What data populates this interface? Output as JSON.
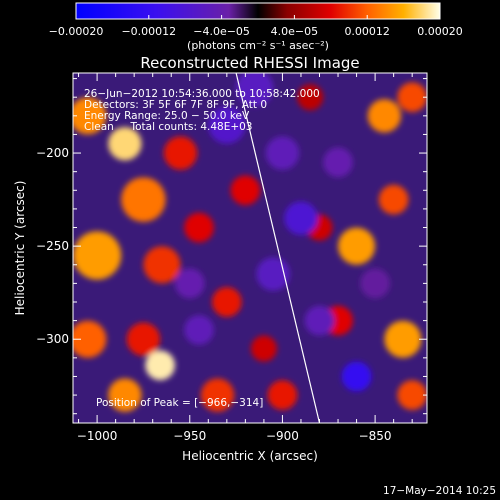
{
  "chart_data": {
    "type": "heatmap",
    "title": "Reconstructed RHESSI Image",
    "xlabel": "Heliocentric X (arcsec)",
    "ylabel": "Heliocentric Y (arcsec)",
    "xlim": [
      -1013,
      -822
    ],
    "ylim": [
      -345,
      -157
    ],
    "x_ticks": [
      {
        "v": -1000,
        "label": "−1000"
      },
      {
        "v": -950,
        "label": "−950"
      },
      {
        "v": -900,
        "label": "−900"
      },
      {
        "v": -850,
        "label": "−850"
      }
    ],
    "y_ticks": [
      {
        "v": -200,
        "label": "−200"
      },
      {
        "v": -250,
        "label": "−250"
      },
      {
        "v": -300,
        "label": "−300"
      }
    ],
    "colorbar": {
      "range": [
        -0.0002,
        0.0002
      ],
      "ticks": [
        {
          "v": -0.0002,
          "label": "−0.00020"
        },
        {
          "v": -0.00012,
          "label": "−0.00012"
        },
        {
          "v": -4e-05,
          "label": "−4.0e−05"
        },
        {
          "v": 4e-05,
          "label": "4.0e−05"
        },
        {
          "v": 0.00012,
          "label": "0.00012"
        },
        {
          "v": 0.0002,
          "label": "0.00020"
        }
      ],
      "units": "(photons cm⁻² s⁻¹ asec⁻²)"
    },
    "annotations": [
      "26−Jun−2012 10:54:36.000 to 10:58:42.000",
      "Detectors: 3F 5F 6F 7F 8F 9F, Att 0",
      "Energy Range: 25.0 − 50.0 keV",
      "Clean     Total counts: 4.48E+03"
    ],
    "peak_text": "Position of Peak = [−966,−314]",
    "limb_line": [
      {
        "x": -925,
        "y": -157
      },
      {
        "x": -880,
        "y": -345
      }
    ],
    "blobs": [
      {
        "x": -985,
        "y": -195,
        "v": 0.00018,
        "r": 9
      },
      {
        "x": -1005,
        "y": -180,
        "v": 0.00014,
        "r": 10
      },
      {
        "x": -975,
        "y": -225,
        "v": 0.00013,
        "r": 12
      },
      {
        "x": -1000,
        "y": -255,
        "v": 0.00015,
        "r": 13
      },
      {
        "x": -965,
        "y": -260,
        "v": 0.0001,
        "r": 10
      },
      {
        "x": -955,
        "y": -200,
        "v": 9e-05,
        "r": 9
      },
      {
        "x": -1005,
        "y": -300,
        "v": 0.00012,
        "r": 10
      },
      {
        "x": -975,
        "y": -300,
        "v": 9e-05,
        "r": 9
      },
      {
        "x": -966,
        "y": -314,
        "v": 0.00019,
        "r": 8
      },
      {
        "x": -985,
        "y": -330,
        "v": 0.00014,
        "r": 9
      },
      {
        "x": -935,
        "y": -330,
        "v": 0.0001,
        "r": 9
      },
      {
        "x": -930,
        "y": -280,
        "v": 9e-05,
        "r": 8
      },
      {
        "x": -920,
        "y": -220,
        "v": 8e-05,
        "r": 8
      },
      {
        "x": -945,
        "y": -240,
        "v": 8e-05,
        "r": 8
      },
      {
        "x": -860,
        "y": -250,
        "v": 0.00015,
        "r": 10
      },
      {
        "x": -845,
        "y": -180,
        "v": 0.00014,
        "r": 9
      },
      {
        "x": -830,
        "y": -170,
        "v": 0.00011,
        "r": 8
      },
      {
        "x": -840,
        "y": -225,
        "v": 0.00011,
        "r": 8
      },
      {
        "x": -835,
        "y": -300,
        "v": 0.00015,
        "r": 10
      },
      {
        "x": -830,
        "y": -330,
        "v": 0.00011,
        "r": 8
      },
      {
        "x": -900,
        "y": -330,
        "v": 9e-05,
        "r": 8
      },
      {
        "x": -910,
        "y": -305,
        "v": 7e-05,
        "r": 7
      },
      {
        "x": -880,
        "y": -240,
        "v": 7e-05,
        "r": 7
      },
      {
        "x": -870,
        "y": -290,
        "v": 8e-05,
        "r": 8
      },
      {
        "x": -885,
        "y": -170,
        "v": 6e-05,
        "r": 7
      },
      {
        "x": -915,
        "y": -165,
        "v": -6e-05,
        "r": 10
      },
      {
        "x": -930,
        "y": -185,
        "v": -7e-05,
        "r": 10
      },
      {
        "x": -900,
        "y": -200,
        "v": -5e-05,
        "r": 9
      },
      {
        "x": -890,
        "y": -235,
        "v": -8e-05,
        "r": 9
      },
      {
        "x": -905,
        "y": -265,
        "v": -6e-05,
        "r": 9
      },
      {
        "x": -870,
        "y": -205,
        "v": -4e-05,
        "r": 8
      },
      {
        "x": -860,
        "y": -320,
        "v": -0.00012,
        "r": 8
      },
      {
        "x": -880,
        "y": -290,
        "v": -5e-05,
        "r": 8
      },
      {
        "x": -950,
        "y": -270,
        "v": -4e-05,
        "r": 8
      },
      {
        "x": -945,
        "y": -295,
        "v": -5e-05,
        "r": 8
      },
      {
        "x": -850,
        "y": -270,
        "v": -3e-05,
        "r": 8
      }
    ]
  },
  "footer": {
    "timestamp": "17−May−2014 10:25"
  }
}
